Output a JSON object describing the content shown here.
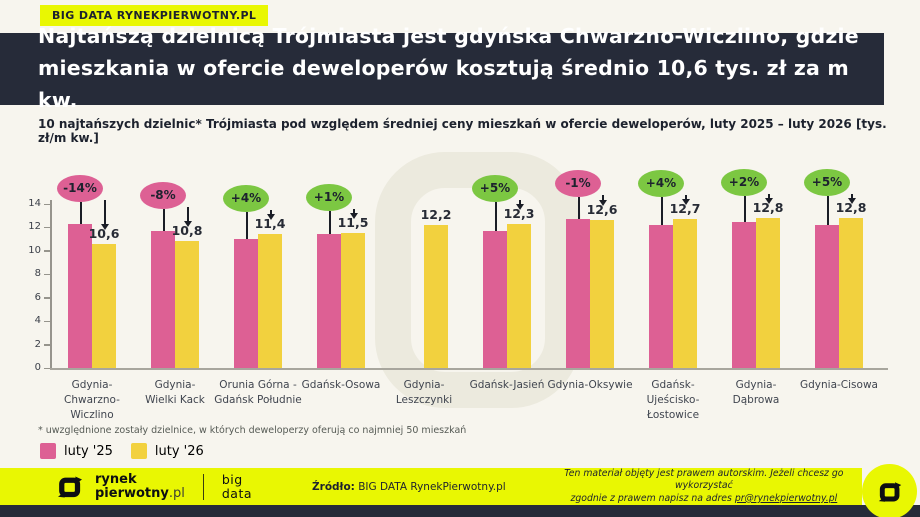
{
  "header": {
    "badge": "BIG DATA RYNEKPIERWOTNY.PL",
    "title_line1": "Najtańszą dzielnicą Trójmiasta jest gdyńska Chwarzno-Wiczlino, gdzie",
    "title_line2": "mieszkania w ofercie deweloperów kosztują średnio 10,6 tys. zł za m kw.",
    "subtitle": "10 najtańszych dzielnic* Trójmiasta pod względem średniej ceny mieszkań w ofercie deweloperów, luty 2025 – luty 2026 [tys. zł/m kw.]"
  },
  "chart_data": {
    "type": "bar",
    "title": "10 najtańszych dzielnic Trójmiasta pod względem średniej ceny mieszkań w ofercie deweloperów",
    "unit": "tys. zł/m kw.",
    "categories": [
      "Gdynia-Chwarzno-Wiczlino",
      "Gdynia-Wielki Kack",
      "Orunia Górna - Gdańsk Południe",
      "Gdańsk-Osowa",
      "Gdynia-Leszczynki",
      "Gdańsk-Jasień",
      "Gdynia-Oksywie",
      "Gdańsk-Ujeścisko-Łostowice",
      "Gdynia-Dąbrowa",
      "Gdynia-Cisowa"
    ],
    "category_lines": [
      "Gdynia-\nChwarzno-\nWiczlino",
      "Gdynia-\nWielki Kack",
      "Orunia Górna -\nGdańsk Południe",
      "Gdańsk-Osowa",
      "Gdynia-\nLeszczynki",
      "Gdańsk-Jasień",
      "Gdynia-Oksywie",
      "Gdańsk-\nUjeścisko-\nŁostowice",
      "Gdynia-\nDąbrowa",
      "Gdynia-Cisowa"
    ],
    "series": [
      {
        "name": "luty '25",
        "color": "#dd6094",
        "values": [
          12.3,
          11.7,
          11.0,
          11.4,
          null,
          11.7,
          12.7,
          12.2,
          12.5,
          12.2
        ]
      },
      {
        "name": "luty '26",
        "color": "#f2d13e",
        "values": [
          10.6,
          10.8,
          11.4,
          11.5,
          12.2,
          12.3,
          12.6,
          12.7,
          12.8,
          12.8
        ]
      }
    ],
    "value_labels": [
      "10,6",
      "10,8",
      "11,4",
      "11,5",
      "12,2",
      "12,3",
      "12,6",
      "12,7",
      "12,8",
      "12,8"
    ],
    "change_badges": [
      "-14%",
      "-8%",
      "+4%",
      "+1%",
      null,
      "+5%",
      "-1%",
      "+4%",
      "+2%",
      "+5%"
    ],
    "badge_negative_color": "#dd6094",
    "badge_positive_color": "#7cc742",
    "ylim": [
      0,
      14
    ],
    "yticks": [
      0,
      2,
      4,
      6,
      8,
      10,
      12,
      14
    ],
    "grid": false,
    "legend_position": "bottom-left"
  },
  "footnote": "* uwzględnione zostały dzielnice, w których deweloperzy oferują co najmniej 50 mieszkań",
  "legend": [
    {
      "label": "luty '25",
      "color": "#dd6094"
    },
    {
      "label": "luty '26",
      "color": "#f2d13e"
    }
  ],
  "footer": {
    "brand_line1": "rynek",
    "brand_line2": "pierwotny",
    "brand_suffix": ".pl",
    "bigdata_line1": "big",
    "bigdata_line2": "data",
    "source_label": "Źródło:",
    "source_value": " BIG DATA RynekPierwotny.pl",
    "copyright_line1": "Ten materiał objęty jest prawem autorskim. Jeżeli chcesz go wykorzystać",
    "copyright_line2_prefix": "zgodnie z prawem napisz na adres ",
    "copyright_email": "pr@rynekpierwotny.pl"
  },
  "colors": {
    "accent_yellow": "#e9f702",
    "navy": "#262b39",
    "bar_pink": "#dd6094",
    "bar_yellow": "#f2d13e",
    "badge_green": "#7cc742",
    "background": "#f7f5ee"
  }
}
